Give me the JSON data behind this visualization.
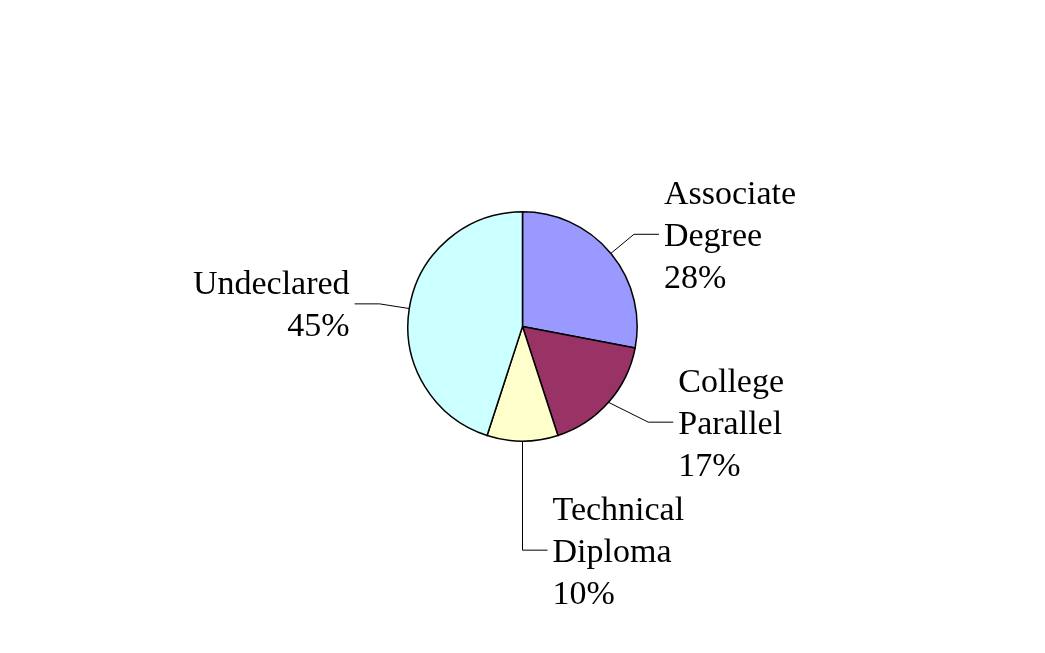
{
  "chart_data": {
    "type": "pie",
    "categories": [
      "Associate Degree",
      "College Parallel",
      "Technical Diploma",
      "Undeclared"
    ],
    "values": [
      28,
      17,
      10,
      45
    ],
    "colors": [
      "#9999ff",
      "#993366",
      "#ffffcc",
      "#ccffff"
    ],
    "value_labels": [
      "28%",
      "17%",
      "10%",
      "45%"
    ],
    "legend": false
  }
}
